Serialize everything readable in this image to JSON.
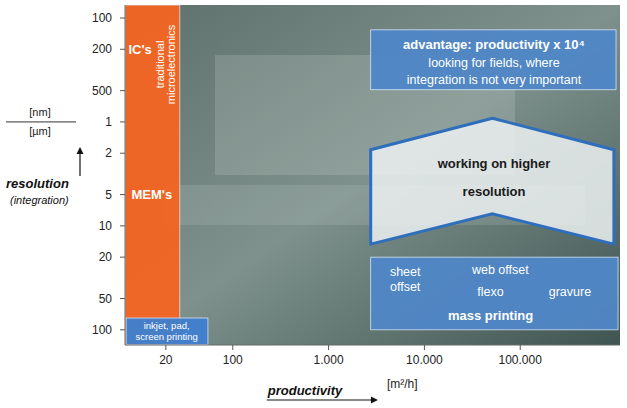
{
  "chart_data": {
    "type": "region",
    "log": true,
    "x_label": "productivity",
    "x_unit": "[m²/h]",
    "y_label": "resolution",
    "y_sublabel": "(integration)",
    "y_units": [
      "[nm]",
      "[µm]"
    ],
    "unit_boundary": 1,
    "xlim": [
      7.5,
      1100000
    ],
    "ylim": [
      0.075,
      140
    ],
    "xticks": [
      20,
      100,
      {
        "value": 1000,
        "label": "1.000"
      },
      {
        "value": 10000,
        "label": "10.000"
      },
      {
        "value": 100000,
        "label": "100.000"
      }
    ],
    "yticks": [
      {
        "value": 0.1,
        "label": "100"
      },
      {
        "value": 0.2,
        "label": "200"
      },
      {
        "value": 0.5,
        "label": "500"
      },
      1,
      2,
      5,
      10,
      20,
      50,
      100
    ],
    "regions": [
      {
        "shape": "rect",
        "x": [
          7.5,
          28
        ],
        "y": [
          0.075,
          140
        ],
        "color": "#f26522",
        "titles": [
          {
            "lines": [
              "IC's"
            ],
            "x": 10.8,
            "y": 0.2
          },
          {
            "lines": [
              "MEM's"
            ],
            "x": 14.3,
            "y": 5
          }
        ],
        "labels": [],
        "side_text": {
          "lines": [
            "traditional",
            "microelectronics"
          ],
          "x": 19.9,
          "y": 0.28
        }
      },
      {
        "shape": "rect",
        "x": [
          7.7,
          55
        ],
        "y": [
          77,
          139
        ],
        "color": "#3f7fcf",
        "titles": [],
        "labels": [
          {
            "lines": [
              "inkjet, pad,",
              "screen printing"
            ],
            "x": 20.4,
            "y": 102
          }
        ]
      },
      {
        "shape": "rect",
        "x": [
          2750,
          1000000
        ],
        "y": [
          0.13,
          0.49
        ],
        "color": "#4f86c6",
        "titles": [
          {
            "lines": [
              "advantage:  productivity x 10⁴"
            ],
            "x": 53300,
            "y": 0.178
          }
        ],
        "labels": [
          {
            "lines": [
              "looking for fields, where"
            ],
            "x": 53300,
            "y": 0.271
          },
          {
            "lines": [
              "integration is not very important"
            ],
            "x": 53300,
            "y": 0.394
          }
        ]
      },
      {
        "shape": "arrow",
        "x": [
          2750,
          950000
        ],
        "y": [
          0.92,
          15
        ],
        "color": "#2f6ebd",
        "titles": [
          {
            "lines": [
              "working on higher"
            ],
            "x": 53300,
            "y": 2.5
          },
          {
            "lines": [
              "resolution"
            ],
            "x": 53300,
            "y": 4.7
          }
        ],
        "labels": []
      },
      {
        "shape": "rect",
        "x": [
          2750,
          1050000
        ],
        "y": [
          20,
          100
        ],
        "color": "#4f86c6",
        "titles": [
          {
            "lines": [
              "mass printing"
            ],
            "x": 49000,
            "y": 73
          }
        ],
        "labels": [
          {
            "lines": [
              "sheet",
              "offset"
            ],
            "x": 6300,
            "y": 33
          },
          {
            "lines": [
              "web offset"
            ],
            "x": 62000,
            "y": 26.5
          },
          {
            "lines": [
              "flexo"
            ],
            "x": 49000,
            "y": 43
          },
          {
            "lines": [
              "gravure"
            ],
            "x": 330000,
            "y": 43
          }
        ]
      }
    ]
  }
}
